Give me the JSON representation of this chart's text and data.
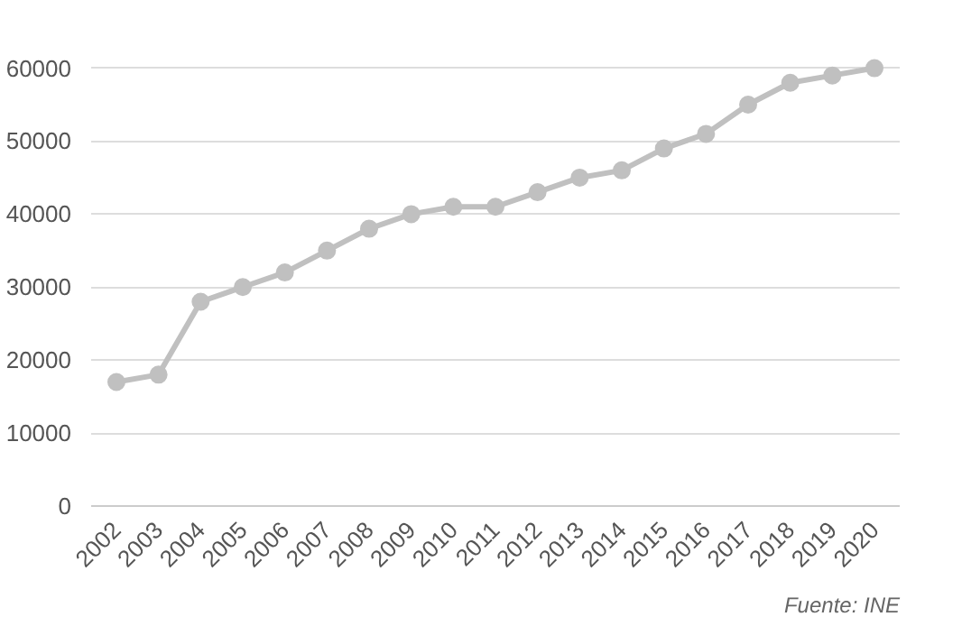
{
  "chart_data": {
    "type": "line",
    "categories": [
      "2002",
      "2003",
      "2004",
      "2005",
      "2006",
      "2007",
      "2008",
      "2009",
      "2010",
      "2011",
      "2012",
      "2013",
      "2014",
      "2015",
      "2016",
      "2017",
      "2018",
      "2019",
      "2020"
    ],
    "series": [
      {
        "color": "#c0c0c0",
        "values": [
          17000,
          18000,
          28000,
          30000,
          32000,
          35000,
          38000,
          40000,
          41000,
          41000,
          43000,
          45000,
          46000,
          49000,
          51000,
          55000,
          58000,
          59000,
          60000
        ]
      }
    ],
    "ylim": [
      0,
      60000
    ],
    "yticks": [
      0,
      10000,
      20000,
      30000,
      40000,
      50000,
      60000
    ],
    "grid": "y",
    "marker": "circle",
    "line_style": "solid",
    "annotations": [
      "Fuente: INE"
    ]
  }
}
